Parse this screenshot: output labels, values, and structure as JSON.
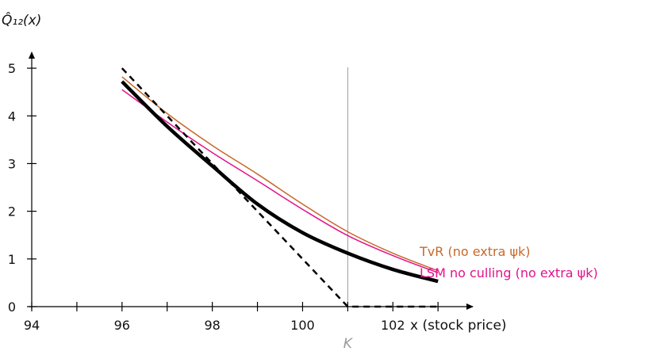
{
  "chart_data": {
    "type": "line",
    "title": "",
    "ylabel": "Q̂₁₂(x)",
    "xlabel": "x (stock price)",
    "xlim": [
      94,
      103.7
    ],
    "ylim": [
      0,
      5.4
    ],
    "x_tick_labels": [
      "94",
      "96",
      "98",
      "100",
      "102"
    ],
    "x_minor_ticks": [
      95,
      97,
      99,
      101,
      103
    ],
    "y_tick_labels": [
      "0",
      "1",
      "2",
      "3",
      "4",
      "5"
    ],
    "grid": false,
    "legend": "inline-right",
    "strike": {
      "x": 101,
      "label": "K",
      "color": "#999999"
    },
    "series": [
      {
        "name": "TvR (no extra ψk)",
        "color": "#c8682a",
        "width": 1.5,
        "x": [
          96,
          97,
          98,
          99,
          100,
          101,
          102,
          103
        ],
        "y": [
          4.82,
          4.05,
          3.38,
          2.78,
          2.15,
          1.57,
          1.12,
          0.75
        ]
      },
      {
        "name": "LSM no culling (no extra ψk)",
        "color": "#e2138a",
        "width": 1.5,
        "x": [
          96,
          97,
          98,
          99,
          100,
          101,
          102,
          103
        ],
        "y": [
          4.55,
          3.87,
          3.23,
          2.64,
          2.04,
          1.49,
          1.07,
          0.71
        ]
      },
      {
        "name": "",
        "color": "#000000",
        "width": 4.5,
        "x": [
          96,
          97,
          98,
          99,
          100,
          101,
          102,
          103
        ],
        "y": [
          4.72,
          3.78,
          2.95,
          2.15,
          1.55,
          1.12,
          0.78,
          0.53
        ]
      },
      {
        "name": "",
        "color": "#000000",
        "width": 2.5,
        "dashed": true,
        "x": [
          96,
          101,
          103
        ],
        "y": [
          5.0,
          0,
          0
        ]
      }
    ]
  }
}
